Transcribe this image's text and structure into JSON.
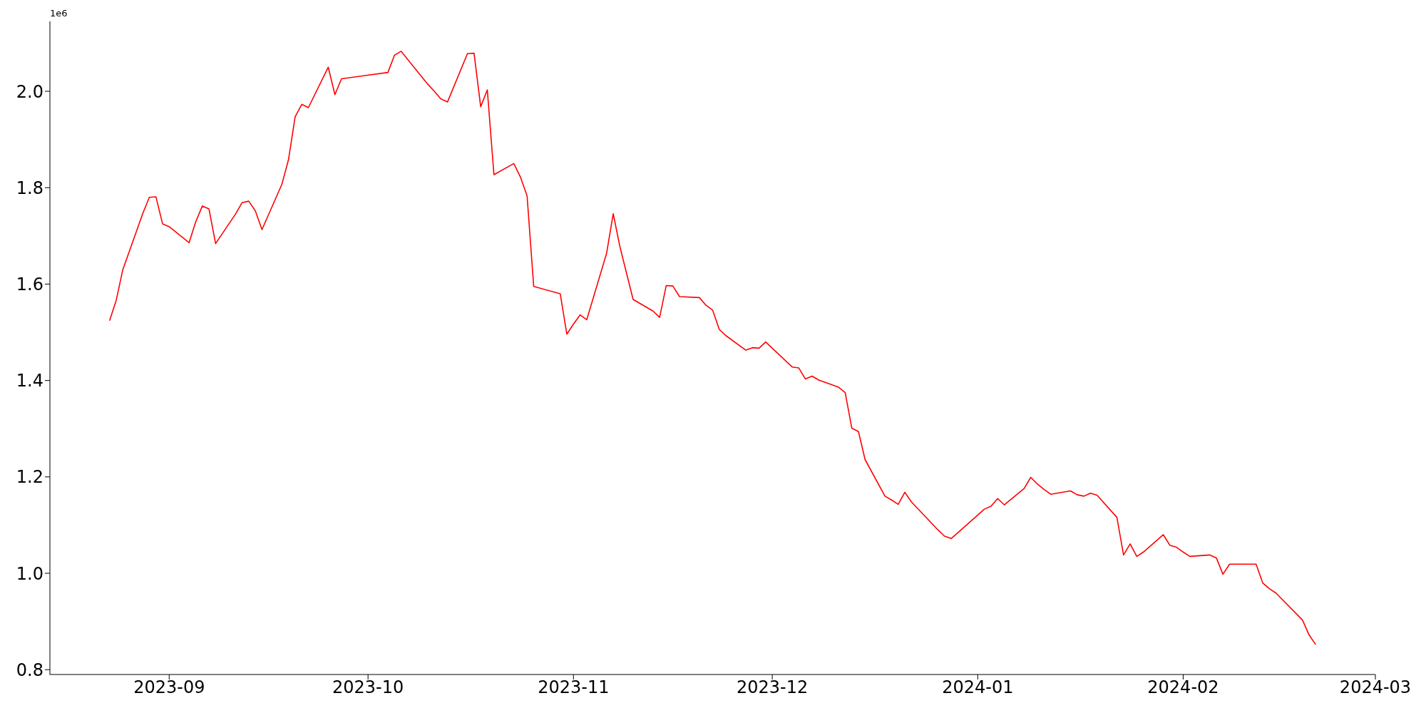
{
  "chart_data": {
    "type": "line",
    "annotations": [
      "1e6"
    ],
    "x": [
      "2023-08-23",
      "2023-08-24",
      "2023-08-25",
      "2023-08-28",
      "2023-08-29",
      "2023-08-30",
      "2023-08-31",
      "2023-09-01",
      "2023-09-04",
      "2023-09-05",
      "2023-09-06",
      "2023-09-07",
      "2023-09-08",
      "2023-09-11",
      "2023-09-12",
      "2023-09-13",
      "2023-09-14",
      "2023-09-15",
      "2023-09-18",
      "2023-09-19",
      "2023-09-20",
      "2023-09-21",
      "2023-09-22",
      "2023-09-25",
      "2023-09-26",
      "2023-09-27",
      "2023-10-04",
      "2023-10-05",
      "2023-10-06",
      "2023-10-10",
      "2023-10-11",
      "2023-10-12",
      "2023-10-13",
      "2023-10-16",
      "2023-10-17",
      "2023-10-18",
      "2023-10-19",
      "2023-10-20",
      "2023-10-23",
      "2023-10-24",
      "2023-10-25",
      "2023-10-26",
      "2023-10-30",
      "2023-10-31",
      "2023-11-01",
      "2023-11-02",
      "2023-11-03",
      "2023-11-06",
      "2023-11-07",
      "2023-11-08",
      "2023-11-10",
      "2023-11-13",
      "2023-11-14",
      "2023-11-15",
      "2023-11-16",
      "2023-11-17",
      "2023-11-20",
      "2023-11-21",
      "2023-11-22",
      "2023-11-23",
      "2023-11-24",
      "2023-11-27",
      "2023-11-28",
      "2023-11-29",
      "2023-11-30",
      "2023-12-04",
      "2023-12-05",
      "2023-12-06",
      "2023-12-07",
      "2023-12-08",
      "2023-12-11",
      "2023-12-12",
      "2023-12-13",
      "2023-12-14",
      "2023-12-15",
      "2023-12-18",
      "2023-12-19",
      "2023-12-20",
      "2023-12-21",
      "2023-12-22",
      "2023-12-26",
      "2023-12-27",
      "2023-12-28",
      "2024-01-02",
      "2024-01-03",
      "2024-01-04",
      "2024-01-05",
      "2024-01-08",
      "2024-01-09",
      "2024-01-10",
      "2024-01-11",
      "2024-01-12",
      "2024-01-15",
      "2024-01-16",
      "2024-01-17",
      "2024-01-18",
      "2024-01-19",
      "2024-01-22",
      "2024-01-23",
      "2024-01-24",
      "2024-01-25",
      "2024-01-26",
      "2024-01-29",
      "2024-01-30",
      "2024-01-31",
      "2024-02-01",
      "2024-02-02",
      "2024-02-05",
      "2024-02-06",
      "2024-02-07",
      "2024-02-08",
      "2024-02-09",
      "2024-02-12",
      "2024-02-13",
      "2024-02-14",
      "2024-02-15",
      "2024-02-19",
      "2024-02-20",
      "2024-02-21"
    ],
    "series": [
      {
        "color": "#ff0000",
        "values": [
          1.524,
          1.566,
          1.63,
          1.746,
          1.78,
          1.781,
          1.725,
          1.719,
          1.686,
          1.729,
          1.762,
          1.756,
          1.684,
          1.745,
          1.769,
          1.772,
          1.752,
          1.713,
          1.807,
          1.858,
          1.947,
          1.973,
          1.966,
          2.05,
          1.993,
          2.026,
          2.039,
          2.075,
          2.083,
          2.015,
          2.0,
          1.984,
          1.978,
          2.078,
          2.079,
          1.968,
          2.003,
          1.827,
          1.85,
          1.822,
          1.783,
          1.595,
          1.58,
          1.496,
          1.517,
          1.536,
          1.526,
          1.664,
          1.746,
          1.678,
          1.568,
          1.544,
          1.531,
          1.597,
          1.596,
          1.574,
          1.572,
          1.556,
          1.546,
          1.506,
          1.493,
          1.463,
          1.468,
          1.467,
          1.48,
          1.428,
          1.426,
          1.403,
          1.409,
          1.401,
          1.386,
          1.375,
          1.301,
          1.294,
          1.236,
          1.16,
          1.152,
          1.143,
          1.168,
          1.148,
          1.09,
          1.077,
          1.072,
          1.133,
          1.139,
          1.155,
          1.142,
          1.176,
          1.199,
          1.185,
          1.174,
          1.164,
          1.171,
          1.163,
          1.16,
          1.166,
          1.162,
          1.116,
          1.038,
          1.061,
          1.035,
          1.044,
          1.08,
          1.058,
          1.054,
          1.044,
          1.035,
          1.038,
          1.032,
          0.998,
          1.019,
          1.019,
          1.019,
          0.98,
          0.968,
          0.959,
          0.903,
          0.872,
          0.852
        ]
      }
    ],
    "xlim": [
      "2023-08-14",
      "2024-03-01"
    ],
    "xticks": [
      "2023-09",
      "2023-10",
      "2023-11",
      "2023-12",
      "2024-01",
      "2024-02",
      "2024-03"
    ],
    "ylim": [
      0.79,
      2.145
    ],
    "yticks": [
      0.8,
      {
        "value": 1,
        "label": "1.0"
      },
      1.2,
      1.4,
      1.6,
      1.8,
      {
        "value": 2,
        "label": "2.0"
      }
    ],
    "grid": false,
    "legend": false,
    "marker": "none",
    "line_style": "solid"
  }
}
